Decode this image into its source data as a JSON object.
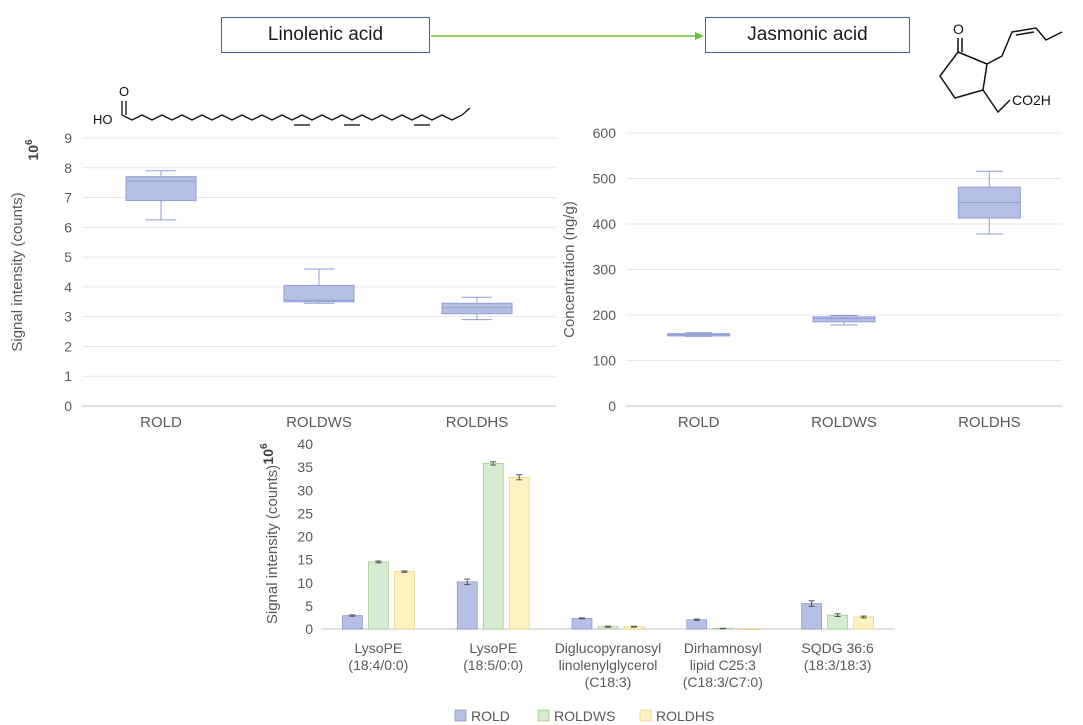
{
  "pathway": {
    "from": "Linolenic acid",
    "to": "Jasmonic acid",
    "linolenic_structure_label": "HO",
    "jasmonic_structure_labels": {
      "ketone": "O",
      "acid": "CO2H"
    }
  },
  "colors": {
    "rold": "#b4c0e4",
    "rold_edge": "#7a88c8",
    "roldws": "#d6ecd0",
    "roldws_edge": "#8cc07a",
    "roldhs": "#fff2c0",
    "roldhs_edge": "#e6c86a",
    "box_fill": "#b4c0e4",
    "box_edge": "#8f9ed6",
    "arrow": "#6cbf3c",
    "grid": "#e6e6e6",
    "text": "#595959"
  },
  "chart_data": [
    {
      "type": "boxplot",
      "ylabel": "Signal intensity (counts)",
      "yscale_label": "10",
      "yscale_exp": "6",
      "ylim": [
        0,
        9
      ],
      "yticks": [
        0,
        1,
        2,
        3,
        4,
        5,
        6,
        7,
        8,
        9
      ],
      "categories": [
        "ROLD",
        "ROLDWS",
        "ROLDHS"
      ],
      "boxes": [
        {
          "min": 6.25,
          "q1": 6.9,
          "median": 7.55,
          "q3": 7.7,
          "max": 7.9
        },
        {
          "min": 3.45,
          "q1": 3.5,
          "median": 3.55,
          "q3": 4.05,
          "max": 4.6
        },
        {
          "min": 2.9,
          "q1": 3.1,
          "median": 3.3,
          "q3": 3.45,
          "max": 3.65
        }
      ]
    },
    {
      "type": "boxplot",
      "ylabel": "Concentration (ng/g)",
      "ylim": [
        0,
        600
      ],
      "yticks": [
        0,
        100,
        200,
        300,
        400,
        500,
        600
      ],
      "categories": [
        "ROLD",
        "ROLDWS",
        "ROLDHS"
      ],
      "boxes": [
        {
          "min": 153,
          "q1": 154,
          "median": 157,
          "q3": 159,
          "max": 161
        },
        {
          "min": 178,
          "q1": 185,
          "median": 192,
          "q3": 196,
          "max": 199
        },
        {
          "min": 378,
          "q1": 413,
          "median": 447,
          "q3": 481,
          "max": 516
        }
      ]
    },
    {
      "type": "bar",
      "ylabel": "Signal intensity (counts)",
      "yscale_label": "10",
      "yscale_exp": "6",
      "ylim": [
        0,
        40
      ],
      "yticks": [
        0,
        5,
        10,
        15,
        20,
        25,
        30,
        35,
        40
      ],
      "categories": [
        [
          "LysoPE",
          "(18:4/0:0)"
        ],
        [
          "LysoPE",
          "(18:5/0:0)"
        ],
        [
          "Diglucopyranosyl",
          "linolenylglycerol",
          "(C18:3)"
        ],
        [
          "Dirhamnosyl",
          "lipid C25:3",
          "(C18:3/C7:0)"
        ],
        [
          "SQDG 36:6",
          "(18:3/18:3)"
        ]
      ],
      "series": [
        {
          "name": "ROLD",
          "values": [
            2.9,
            10.2,
            2.3,
            2.0,
            5.5
          ],
          "errors": [
            0.15,
            0.6,
            0.1,
            0.15,
            0.6
          ]
        },
        {
          "name": "ROLDWS",
          "values": [
            14.5,
            35.8,
            0.5,
            0.1,
            3.0
          ],
          "errors": [
            0.2,
            0.35,
            0.1,
            0.05,
            0.3
          ]
        },
        {
          "name": "ROLDHS",
          "values": [
            12.4,
            32.8,
            0.5,
            0.0,
            2.6
          ],
          "errors": [
            0.15,
            0.55,
            0.1,
            0.0,
            0.2
          ]
        }
      ],
      "legend_position": "bottom"
    }
  ]
}
